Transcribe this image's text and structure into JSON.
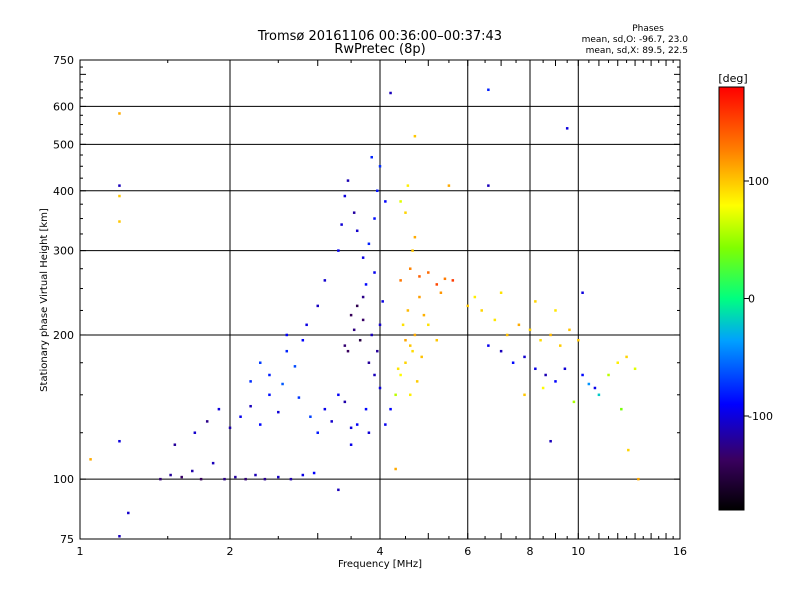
{
  "chart_data": {
    "type": "scatter",
    "title": "Tromsø 20161106 00:36:00–00:37:43",
    "subtitle": "RwPretec (8p)",
    "xlabel": "Frequency [MHz]",
    "ylabel": "Stationary phase Virtual Height [km]",
    "xscale": "log",
    "yscale": "log",
    "xlim": [
      1,
      16
    ],
    "ylim": [
      75,
      750
    ],
    "grid": true,
    "xticks": [
      1,
      2,
      4,
      6,
      8,
      10,
      16
    ],
    "xtick_labels": [
      "1",
      "2",
      "4",
      "6",
      "8",
      "10",
      "16"
    ],
    "xgrid": [
      2,
      4,
      6,
      8,
      10
    ],
    "yticks": [
      75,
      100,
      200,
      300,
      400,
      500,
      600,
      750
    ],
    "ytick_labels": [
      "75",
      "100",
      "200",
      "300",
      "400",
      "500",
      "600",
      "750"
    ],
    "ygrid": [
      100,
      200,
      300,
      400,
      500,
      600
    ],
    "info": {
      "heading": "Phases",
      "line_o": "mean, sd,O: -96.7, 23.0",
      "line_x": "mean, sd,X:  89.5, 22.5"
    },
    "colorbar": {
      "label": "[deg]",
      "range": [
        -180,
        180
      ],
      "ticks": [
        100,
        0,
        -100
      ],
      "tick_labels": [
        "100",
        "0",
        "-100"
      ]
    },
    "series": [
      {
        "points": [
          [
            1.45,
            100,
            -130
          ],
          [
            1.52,
            102,
            -120
          ],
          [
            1.6,
            101,
            -135
          ],
          [
            1.68,
            104,
            -115
          ],
          [
            1.75,
            100,
            -140
          ],
          [
            1.85,
            108,
            -110
          ],
          [
            1.95,
            100,
            -125
          ],
          [
            2.05,
            101,
            -118
          ],
          [
            2.15,
            100,
            -130
          ],
          [
            2.25,
            102,
            -112
          ],
          [
            2.35,
            100,
            -122
          ],
          [
            2.5,
            101,
            -108
          ],
          [
            2.65,
            100,
            -115
          ],
          [
            2.8,
            102,
            -98
          ],
          [
            2.95,
            103,
            -90
          ],
          [
            1.55,
            118,
            -120
          ],
          [
            1.7,
            125,
            -105
          ],
          [
            1.8,
            132,
            -125
          ],
          [
            1.9,
            140,
            -100
          ],
          [
            2.0,
            128,
            -115
          ],
          [
            2.1,
            135,
            -95
          ],
          [
            2.2,
            142,
            -110
          ],
          [
            2.3,
            130,
            -88
          ],
          [
            2.4,
            150,
            -85
          ],
          [
            2.5,
            138,
            -102
          ],
          [
            2.2,
            160,
            -75
          ],
          [
            2.3,
            175,
            -70
          ],
          [
            2.4,
            165,
            -80
          ],
          [
            2.55,
            158,
            -60
          ],
          [
            2.6,
            185,
            -78
          ],
          [
            2.7,
            172,
            -65
          ],
          [
            2.8,
            195,
            -90
          ],
          [
            2.75,
            148,
            -72
          ],
          [
            2.9,
            135,
            -68
          ],
          [
            3.0,
            125,
            -82
          ],
          [
            3.1,
            140,
            -96
          ],
          [
            3.2,
            132,
            -105
          ],
          [
            3.3,
            150,
            -92
          ],
          [
            3.4,
            145,
            -115
          ],
          [
            3.5,
            128,
            -100
          ],
          [
            2.6,
            200,
            -92
          ],
          [
            2.85,
            210,
            -98
          ],
          [
            3.0,
            230,
            -108
          ],
          [
            3.1,
            260,
            -104
          ],
          [
            3.3,
            300,
            -95
          ],
          [
            3.35,
            340,
            -102
          ],
          [
            3.4,
            390,
            -100
          ],
          [
            3.45,
            420,
            -112
          ],
          [
            3.55,
            360,
            -118
          ],
          [
            3.6,
            330,
            -105
          ],
          [
            3.7,
            290,
            -98
          ],
          [
            3.75,
            255,
            -88
          ],
          [
            3.8,
            310,
            -80
          ],
          [
            3.9,
            350,
            -86
          ],
          [
            3.95,
            400,
            -84
          ],
          [
            4.0,
            450,
            -75
          ],
          [
            3.85,
            470,
            -78
          ],
          [
            4.1,
            380,
            -90
          ],
          [
            3.9,
            270,
            -94
          ],
          [
            3.7,
            240,
            -125
          ],
          [
            3.5,
            220,
            -140
          ],
          [
            3.55,
            205,
            -128
          ],
          [
            3.65,
            195,
            -150
          ],
          [
            3.45,
            185,
            -138
          ],
          [
            3.4,
            190,
            -132
          ],
          [
            3.6,
            230,
            -145
          ],
          [
            3.7,
            215,
            -135
          ],
          [
            3.8,
            175,
            -120
          ],
          [
            3.9,
            165,
            -110
          ],
          [
            4.0,
            155,
            -100
          ],
          [
            3.75,
            140,
            -88
          ],
          [
            3.6,
            130,
            -92
          ],
          [
            3.5,
            118,
            -96
          ],
          [
            3.8,
            125,
            -102
          ],
          [
            4.1,
            130,
            -95
          ],
          [
            3.85,
            200,
            -110
          ],
          [
            4.0,
            210,
            -105
          ],
          [
            4.05,
            235,
            -98
          ],
          [
            3.95,
            185,
            -120
          ],
          [
            4.2,
            140,
            -90
          ],
          [
            4.3,
            150,
            60
          ],
          [
            4.4,
            165,
            80
          ],
          [
            4.5,
            175,
            95
          ],
          [
            4.6,
            190,
            100
          ],
          [
            4.7,
            200,
            110
          ],
          [
            4.45,
            210,
            90
          ],
          [
            4.55,
            225,
            105
          ],
          [
            4.8,
            240,
            115
          ],
          [
            4.9,
            220,
            108
          ],
          [
            4.65,
            185,
            92
          ],
          [
            4.35,
            170,
            88
          ],
          [
            4.75,
            160,
            98
          ],
          [
            4.6,
            150,
            85
          ],
          [
            4.85,
            180,
            102
          ],
          [
            4.5,
            195,
            112
          ],
          [
            4.4,
            260,
            130
          ],
          [
            4.6,
            275,
            125
          ],
          [
            4.8,
            265,
            140
          ],
          [
            5.0,
            270,
            135
          ],
          [
            5.2,
            255,
            150
          ],
          [
            5.4,
            262,
            128
          ],
          [
            5.6,
            260,
            155
          ],
          [
            5.3,
            245,
            118
          ],
          [
            4.7,
            320,
            110
          ],
          [
            4.5,
            360,
            95
          ],
          [
            4.55,
            410,
            85
          ],
          [
            4.4,
            380,
            70
          ],
          [
            4.65,
            300,
            100
          ],
          [
            5.0,
            210,
            90
          ],
          [
            5.2,
            195,
            100
          ],
          [
            6.4,
            225,
            95
          ],
          [
            6.8,
            215,
            88
          ],
          [
            7.2,
            200,
            102
          ],
          [
            7.6,
            210,
            110
          ],
          [
            8.0,
            205,
            96
          ],
          [
            8.4,
            195,
            92
          ],
          [
            8.8,
            200,
            105
          ],
          [
            9.2,
            190,
            98
          ],
          [
            9.6,
            205,
            102
          ],
          [
            10.0,
            195,
            100
          ],
          [
            6.6,
            190,
            -95
          ],
          [
            7.0,
            185,
            -110
          ],
          [
            7.4,
            175,
            -88
          ],
          [
            7.8,
            180,
            -104
          ],
          [
            8.2,
            170,
            -98
          ],
          [
            8.6,
            165,
            -112
          ],
          [
            9.0,
            160,
            -90
          ],
          [
            9.4,
            170,
            -102
          ],
          [
            10.2,
            165,
            -88
          ],
          [
            10.8,
            155,
            -96
          ],
          [
            11.5,
            165,
            60
          ],
          [
            12.0,
            175,
            85
          ],
          [
            12.5,
            180,
            95
          ],
          [
            13.0,
            170,
            70
          ],
          [
            11.0,
            150,
            -20
          ],
          [
            12.2,
            140,
            40
          ],
          [
            9.8,
            145,
            55
          ],
          [
            10.5,
            158,
            -40
          ],
          [
            7.8,
            150,
            100
          ],
          [
            8.5,
            155,
            80
          ],
          [
            6.2,
            240,
            85
          ],
          [
            6.0,
            230,
            100
          ],
          [
            7.0,
            245,
            90
          ],
          [
            8.2,
            235,
            95
          ],
          [
            9.0,
            225,
            88
          ],
          [
            1.2,
            580,
            110
          ],
          [
            1.2,
            410,
            -110
          ],
          [
            1.2,
            390,
            100
          ],
          [
            1.2,
            345,
            100
          ],
          [
            1.2,
            120,
            -100
          ],
          [
            1.2,
            76,
            -110
          ],
          [
            1.25,
            85,
            -105
          ],
          [
            4.2,
            640,
            -110
          ],
          [
            6.6,
            650,
            -80
          ],
          [
            4.7,
            520,
            100
          ],
          [
            6.6,
            410,
            -110
          ],
          [
            9.5,
            540,
            -100
          ],
          [
            5.5,
            410,
            110
          ],
          [
            4.3,
            105,
            110
          ],
          [
            3.3,
            95,
            -110
          ],
          [
            12.6,
            115,
            95
          ],
          [
            13.2,
            100,
            110
          ],
          [
            8.8,
            120,
            -110
          ],
          [
            1.05,
            110,
            110
          ],
          [
            10.2,
            245,
            -100
          ]
        ]
      }
    ]
  }
}
